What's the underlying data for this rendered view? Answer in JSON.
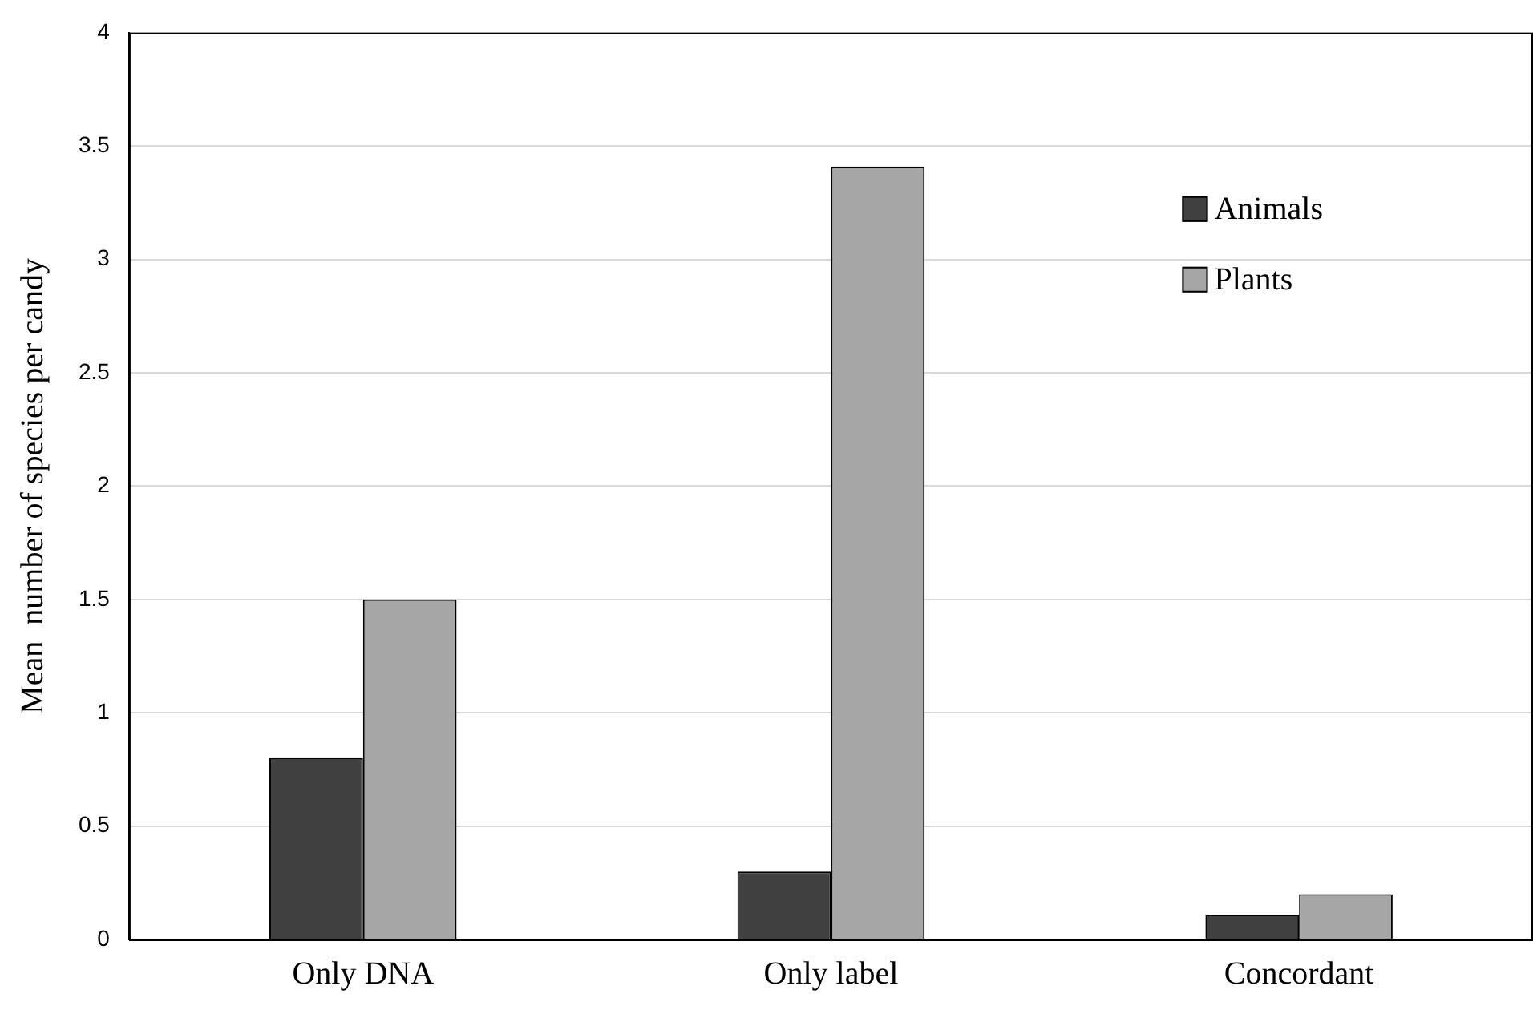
{
  "chart_data": {
    "type": "bar",
    "ylabel": "Mean  number of species per candy",
    "categories": [
      "Only DNA",
      "Only label",
      "Concordant"
    ],
    "series": [
      {
        "name": "Animals",
        "color": "#404040",
        "values": [
          0.8,
          0.3,
          0.11
        ]
      },
      {
        "name": "Plants",
        "color": "#a6a6a6",
        "values": [
          1.5,
          3.41,
          0.2
        ]
      }
    ],
    "ylim": [
      0,
      4
    ],
    "yticks": [
      0,
      0.5,
      1,
      1.5,
      2,
      2.5,
      3,
      3.5,
      4
    ],
    "grid": "y",
    "legend": "top right"
  }
}
